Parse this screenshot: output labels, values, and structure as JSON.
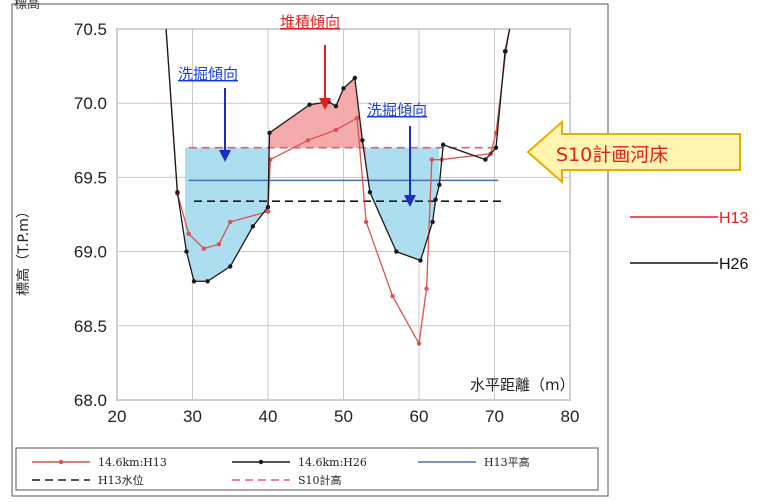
{
  "chart_data": {
    "type": "line",
    "xlabel": "水平距離（m）",
    "ylabel": "標高（T.P.m）",
    "xlim": [
      20,
      80
    ],
    "ylim": [
      68.0,
      70.5
    ],
    "xticks": [
      20,
      30,
      40,
      50,
      60,
      70,
      80
    ],
    "yticks": [
      68.0,
      68.5,
      69.0,
      69.5,
      70.0,
      70.5
    ],
    "xtick_labels": [
      "20",
      "30",
      "40",
      "50",
      "60",
      "70",
      "80"
    ],
    "ytick_labels": [
      "68.0",
      "68.5",
      "69.0",
      "69.5",
      "70.0",
      "70.5"
    ],
    "grid": true,
    "legend_placement": "bottom",
    "series": [
      {
        "name": "14.6km:H13",
        "color": "#d9534f",
        "style": "line-dot",
        "x": [
          26.5,
          28,
          29.5,
          31.5,
          33.5,
          35,
          40,
          40.3,
          45.3,
          49,
          51.8,
          53,
          56.5,
          60,
          61,
          61.7,
          63,
          69.5,
          70.2,
          71.5,
          72
        ],
        "y": [
          70.5,
          69.39,
          69.12,
          69.02,
          69.05,
          69.2,
          69.27,
          69.62,
          69.75,
          69.82,
          69.9,
          69.2,
          68.7,
          68.38,
          68.75,
          69.62,
          69.62,
          69.66,
          69.8,
          70.35,
          70.5
        ]
      },
      {
        "name": "14.6km:H26",
        "color": "#1a1a1a",
        "style": "line-dot",
        "x": [
          26.5,
          28,
          29.2,
          30.2,
          32,
          35,
          38,
          40,
          40.2,
          45.5,
          48,
          49,
          50,
          51.5,
          52.5,
          53.5,
          57,
          60.2,
          61.8,
          62.2,
          62.7,
          63.2,
          68.8,
          70.2,
          71.4,
          72
        ],
        "y": [
          70.5,
          69.4,
          69.0,
          68.8,
          68.8,
          68.9,
          69.17,
          69.3,
          69.8,
          69.99,
          70.01,
          69.98,
          70.1,
          70.17,
          69.75,
          69.4,
          69.0,
          68.94,
          69.2,
          69.35,
          69.45,
          69.72,
          69.62,
          69.7,
          70.35,
          70.5
        ]
      }
    ],
    "reference_lines": [
      {
        "name": "H13平高",
        "color": "#4a6fb0",
        "style": "solid",
        "y": 69.48,
        "x": [
          29.5,
          70.5
        ]
      },
      {
        "name": "H13水位",
        "color": "#1a1a1a",
        "style": "dashed",
        "y": 69.34,
        "x": [
          30.2,
          71.5
        ]
      },
      {
        "name": "S10計高",
        "color": "#e05a7a",
        "style": "dashed",
        "y": 69.7,
        "x": [
          29.5,
          70.5
        ]
      }
    ],
    "fills": [
      {
        "kind": "scour",
        "color": "#a8dcef",
        "series_index": 1,
        "from": 29.0,
        "to": 40.0,
        "ref": 69.7
      },
      {
        "kind": "scour",
        "color": "#a8dcef",
        "series_index": 1,
        "from": 53.0,
        "to": 62.7,
        "ref": 69.7
      },
      {
        "kind": "deposit",
        "color": "#f4a5a8",
        "series_index": 1,
        "from": 40.0,
        "to": 53.0,
        "ref": 69.7
      }
    ],
    "legend": [
      "14.6km:H13",
      "14.6km:H26",
      "H13平高",
      "H13水位",
      "S10計高"
    ]
  },
  "annotations": {
    "scour_left": "洗掘傾向",
    "deposit": "堆積傾向",
    "scour_right": "洗掘傾向",
    "plan_bed": "S10計画河床",
    "top_left_cut": "標高"
  },
  "side_legend": [
    {
      "label": "H13",
      "color": "#e02020"
    },
    {
      "label": "H26",
      "color": "#111111"
    }
  ],
  "colors": {
    "scour_text": "#1a3fd0",
    "deposit_text": "#e02020",
    "callout_fill": "#fff4b0",
    "callout_border": "#e6b000",
    "arrow_blue": "#1a2fc0",
    "arrow_red": "#e02020"
  }
}
